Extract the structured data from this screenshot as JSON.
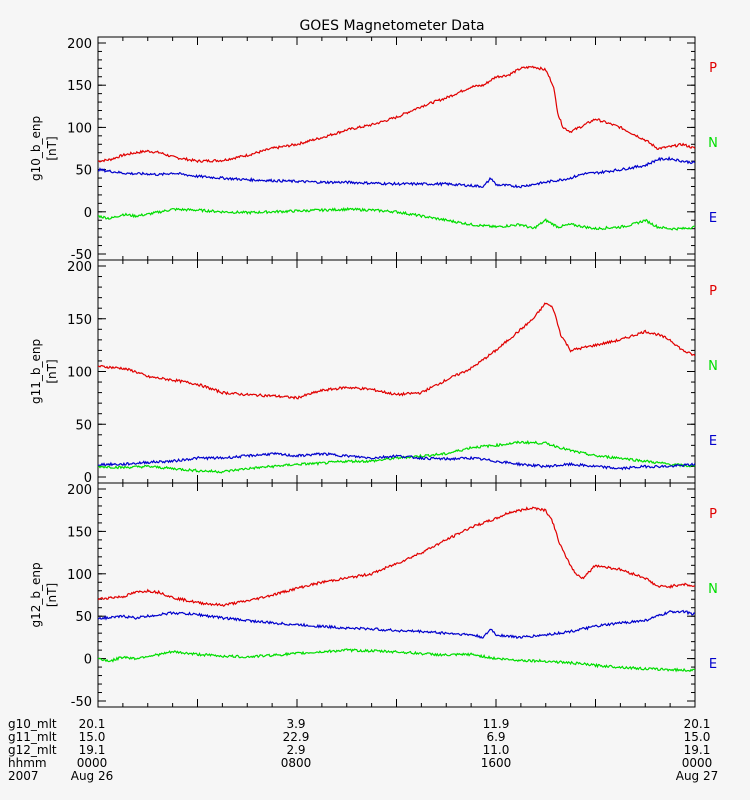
{
  "title": "GOES Magnetometer Data",
  "colors": {
    "background": "#f6f6f6",
    "axis": "#000000",
    "P": "#e00000",
    "N": "#00dd00",
    "E": "#0000cc"
  },
  "legend": {
    "labels": [
      "P",
      "N",
      "E"
    ],
    "placement": "right of each panel"
  },
  "footer": {
    "rows": [
      {
        "label": "g10_mlt",
        "values": [
          "20.1",
          "3.9",
          "11.9",
          "20.1"
        ]
      },
      {
        "label": "g11_mlt",
        "values": [
          "15.0",
          "22.9",
          "6.9",
          "15.0"
        ]
      },
      {
        "label": "g12_mlt",
        "values": [
          "19.1",
          "2.9",
          "11.0",
          "19.1"
        ]
      },
      {
        "label": "hhmm",
        "values": [
          "0000",
          "0800",
          "1600",
          "0000"
        ]
      },
      {
        "label": "2007",
        "values": [
          "Aug 26",
          "",
          "",
          "Aug 27"
        ]
      }
    ]
  },
  "chart_data": [
    {
      "type": "line",
      "ylabel": "g10_b_enp",
      "yunit": "[nT]",
      "ylim": [
        -50,
        200
      ],
      "yticks": [
        -50,
        0,
        50,
        100,
        150,
        200
      ],
      "xlim": [
        0,
        24
      ],
      "series": [
        {
          "name": "P",
          "x": [
            0,
            0.5,
            1,
            1.5,
            2,
            2.5,
            3,
            4,
            5,
            6,
            7,
            8,
            9,
            10,
            11,
            12,
            13,
            14,
            15,
            15.5,
            16,
            16.5,
            17,
            17.5,
            18,
            18.3,
            18.5,
            18.7,
            19,
            19.5,
            20,
            21,
            22,
            22.5,
            23,
            23.5,
            24
          ],
          "values": [
            60,
            62,
            67,
            70,
            72,
            70,
            65,
            60,
            61,
            67,
            75,
            80,
            88,
            97,
            103,
            112,
            125,
            135,
            148,
            150,
            160,
            162,
            170,
            172,
            168,
            150,
            115,
            100,
            95,
            102,
            110,
            100,
            85,
            75,
            77,
            80,
            75
          ]
        },
        {
          "name": "N",
          "x": [
            0,
            0.5,
            1,
            1.5,
            2,
            2.5,
            3,
            4,
            5,
            6,
            7,
            8,
            9,
            10,
            11,
            12,
            13,
            14,
            15,
            16,
            17,
            17.5,
            18,
            18.5,
            19,
            20,
            21,
            21.5,
            22,
            22.5,
            23,
            23.5,
            24
          ],
          "values": [
            -5,
            -8,
            -3,
            -5,
            -3,
            0,
            3,
            2,
            0,
            -1,
            0,
            1,
            2,
            3,
            2,
            0,
            -5,
            -10,
            -15,
            -18,
            -15,
            -20,
            -10,
            -18,
            -15,
            -20,
            -18,
            -15,
            -10,
            -18,
            -20,
            -20,
            -18
          ]
        },
        {
          "name": "E",
          "x": [
            0,
            0.5,
            1,
            1.5,
            2,
            2.5,
            3,
            4,
            5,
            6,
            7,
            8,
            9,
            10,
            11,
            12,
            13,
            14,
            15,
            15.5,
            15.8,
            16,
            17,
            18,
            19,
            19.5,
            20,
            21,
            22,
            22.5,
            23,
            23.5,
            24
          ],
          "values": [
            50,
            48,
            46,
            45,
            45,
            44,
            46,
            42,
            40,
            38,
            37,
            36,
            35,
            35,
            34,
            33,
            33,
            33,
            31,
            30,
            40,
            32,
            30,
            35,
            40,
            45,
            46,
            50,
            55,
            62,
            63,
            60,
            58
          ]
        }
      ]
    },
    {
      "type": "line",
      "ylabel": "g11_b_enp",
      "yunit": "[nT]",
      "ylim": [
        0,
        200
      ],
      "yticks": [
        0,
        50,
        100,
        150,
        200
      ],
      "xlim": [
        0,
        24
      ],
      "series": [
        {
          "name": "P",
          "x": [
            0,
            0.5,
            1,
            1.5,
            2,
            3,
            4,
            5,
            6,
            7,
            8,
            9,
            10,
            11,
            12,
            13,
            14,
            15,
            16,
            17,
            17.5,
            18,
            18.3,
            18.6,
            19,
            20,
            21,
            22,
            22.5,
            23,
            23.5,
            24
          ],
          "values": [
            105,
            104,
            103,
            100,
            95,
            92,
            88,
            80,
            78,
            77,
            75,
            82,
            85,
            83,
            78,
            80,
            92,
            103,
            120,
            140,
            150,
            165,
            160,
            135,
            120,
            125,
            130,
            138,
            135,
            130,
            120,
            115
          ]
        },
        {
          "name": "N",
          "x": [
            0,
            1,
            2,
            3,
            4,
            5,
            6,
            7,
            8,
            9,
            10,
            11,
            12,
            13,
            14,
            15,
            16,
            17,
            18,
            19,
            20,
            21,
            22,
            23,
            24
          ],
          "values": [
            10,
            9,
            10,
            8,
            6,
            5,
            8,
            10,
            12,
            13,
            15,
            15,
            18,
            20,
            22,
            28,
            30,
            33,
            32,
            25,
            20,
            18,
            15,
            12,
            10
          ]
        },
        {
          "name": "E",
          "x": [
            0,
            1,
            2,
            3,
            4,
            5,
            6,
            7,
            8,
            9,
            10,
            11,
            12,
            13,
            14,
            15,
            16,
            17,
            18,
            19,
            20,
            21,
            22,
            23,
            24
          ],
          "values": [
            12,
            12,
            14,
            15,
            18,
            18,
            20,
            22,
            20,
            22,
            20,
            18,
            20,
            18,
            17,
            18,
            15,
            12,
            10,
            12,
            10,
            8,
            10,
            10,
            12
          ]
        }
      ]
    },
    {
      "type": "line",
      "ylabel": "g12_b_enp",
      "yunit": "[nT]",
      "ylim": [
        -50,
        200
      ],
      "yticks": [
        -50,
        0,
        50,
        100,
        150,
        200
      ],
      "xlim": [
        0,
        24
      ],
      "series": [
        {
          "name": "P",
          "x": [
            0,
            0.5,
            1,
            1.5,
            2,
            2.5,
            3,
            4,
            5,
            6,
            7,
            8,
            9,
            10,
            11,
            12,
            13,
            14,
            15,
            15.5,
            16,
            16.5,
            17,
            17.5,
            18,
            18.3,
            18.5,
            18.8,
            19.2,
            19.5,
            20,
            21,
            22,
            22.5,
            23,
            23.5,
            24
          ],
          "values": [
            70,
            72,
            73,
            78,
            80,
            78,
            72,
            66,
            63,
            68,
            75,
            83,
            90,
            95,
            100,
            112,
            125,
            140,
            155,
            160,
            165,
            172,
            175,
            178,
            175,
            160,
            140,
            120,
            100,
            95,
            110,
            105,
            95,
            85,
            85,
            88,
            85
          ]
        },
        {
          "name": "N",
          "x": [
            0,
            0.5,
            1,
            1.5,
            2,
            2.5,
            3,
            4,
            5,
            6,
            7,
            8,
            9,
            10,
            11,
            12,
            13,
            14,
            15,
            16,
            17,
            18,
            19,
            20,
            21,
            22,
            23,
            24
          ],
          "values": [
            0,
            -3,
            2,
            0,
            3,
            5,
            8,
            5,
            3,
            2,
            4,
            6,
            8,
            10,
            9,
            8,
            6,
            4,
            5,
            0,
            -2,
            -3,
            -5,
            -8,
            -10,
            -12,
            -13,
            -14
          ]
        },
        {
          "name": "E",
          "x": [
            0,
            0.5,
            1,
            1.5,
            2,
            2.5,
            3,
            4,
            5,
            6,
            7,
            8,
            9,
            10,
            11,
            12,
            13,
            14,
            15,
            15.5,
            15.8,
            16,
            17,
            18,
            19,
            20,
            21,
            22,
            22.5,
            23,
            23.5,
            24
          ],
          "values": [
            48,
            48,
            50,
            48,
            50,
            52,
            54,
            52,
            48,
            45,
            42,
            40,
            38,
            36,
            35,
            33,
            32,
            30,
            28,
            25,
            35,
            28,
            25,
            28,
            32,
            38,
            42,
            45,
            50,
            55,
            56,
            52
          ]
        }
      ]
    }
  ]
}
